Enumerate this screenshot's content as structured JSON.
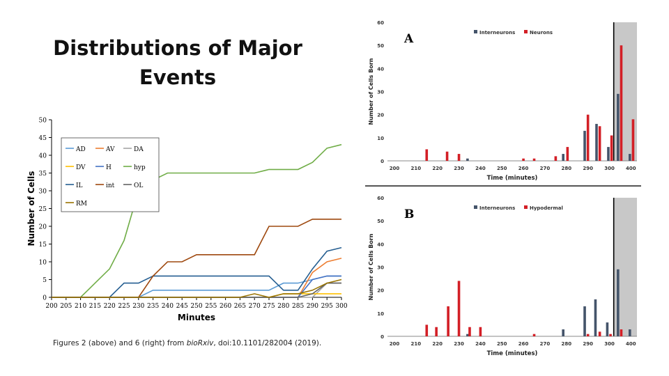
{
  "slide": {
    "title_line1": "Distributions of Major",
    "title_line2": "Events",
    "caption_prefix": "Figures 2 (above) and 6 (right) from ",
    "caption_journal": "bioRxiv",
    "caption_suffix": ", doi:10.1101/282004 (2019)."
  },
  "colors": {
    "AD": "#5b9bd5",
    "AV": "#ed7d31",
    "DA": "#a5a5a5",
    "DV": "#ffc000",
    "H": "#4472c4",
    "hyp": "#70ad47",
    "IL": "#255e91",
    "int": "#9e480e",
    "OL": "#636363",
    "RM": "#997300",
    "interneurons": "#44546a",
    "neurons": "#d31f26",
    "hypodermal": "#d31f26"
  },
  "chart_data": [
    {
      "id": "line",
      "type": "line",
      "xlabel": "Minutes",
      "ylabel": "Number of Cells",
      "ylim": [
        0,
        50
      ],
      "yticks": [
        "0",
        "5",
        "10",
        "15",
        "20",
        "25",
        "30",
        "35",
        "40",
        "45",
        "50"
      ],
      "categories": [
        "200",
        "205",
        "210",
        "215",
        "220",
        "225",
        "230",
        "235",
        "240",
        "245",
        "250",
        "255",
        "260",
        "265",
        "270",
        "275",
        "280",
        "285",
        "290",
        "295",
        "300"
      ],
      "legend": "top-left",
      "series": [
        {
          "name": "AD",
          "values": [
            0,
            0,
            0,
            0,
            0,
            0,
            0,
            2,
            2,
            2,
            2,
            2,
            2,
            2,
            2,
            2,
            4,
            4,
            5,
            6,
            6
          ]
        },
        {
          "name": "AV",
          "values": [
            0,
            0,
            0,
            0,
            0,
            0,
            0,
            0,
            0,
            0,
            0,
            0,
            0,
            0,
            0,
            0,
            0,
            0,
            7,
            10,
            11
          ]
        },
        {
          "name": "DA",
          "values": [
            0,
            0,
            0,
            0,
            0,
            0,
            0,
            0,
            0,
            0,
            0,
            0,
            0,
            0,
            0,
            0,
            0,
            0,
            0,
            4,
            4
          ]
        },
        {
          "name": "DV",
          "values": [
            0,
            0,
            0,
            0,
            0,
            0,
            0,
            0,
            0,
            0,
            0,
            0,
            0,
            0,
            0,
            0,
            1,
            1,
            1,
            1,
            1
          ]
        },
        {
          "name": "H",
          "values": [
            0,
            0,
            0,
            0,
            0,
            0,
            0,
            0,
            0,
            0,
            0,
            0,
            0,
            0,
            0,
            0,
            0,
            0,
            5,
            6,
            6
          ]
        },
        {
          "name": "hyp",
          "values": [
            0,
            0,
            0,
            4,
            8,
            16,
            30,
            33,
            35,
            35,
            35,
            35,
            35,
            35,
            35,
            36,
            36,
            36,
            38,
            42,
            43
          ]
        },
        {
          "name": "IL",
          "values": [
            0,
            0,
            0,
            0,
            0,
            4,
            4,
            6,
            6,
            6,
            6,
            6,
            6,
            6,
            6,
            6,
            2,
            2,
            8,
            13,
            14
          ]
        },
        {
          "name": "int",
          "values": [
            0,
            0,
            0,
            0,
            0,
            0,
            0,
            6,
            10,
            10,
            12,
            12,
            12,
            12,
            12,
            20,
            20,
            20,
            22,
            22,
            22
          ]
        },
        {
          "name": "OL",
          "values": [
            0,
            0,
            0,
            0,
            0,
            0,
            0,
            0,
            0,
            0,
            0,
            0,
            0,
            0,
            0,
            0,
            0,
            0,
            1,
            4,
            4
          ]
        },
        {
          "name": "RM",
          "values": [
            0,
            0,
            0,
            0,
            0,
            0,
            0,
            0,
            0,
            0,
            0,
            0,
            0,
            0,
            1,
            0,
            1,
            1,
            2,
            4,
            5
          ]
        }
      ]
    },
    {
      "id": "A",
      "type": "bar",
      "panel_label": "A",
      "xlabel": "Time (minutes)",
      "ylabel": "Number of Cells Born",
      "ylim": [
        0,
        60
      ],
      "yticks": [
        "0",
        "10",
        "20",
        "30",
        "40",
        "50",
        "60"
      ],
      "xticks": [
        "200",
        "210",
        "220",
        "230",
        "240",
        "250",
        "260",
        "270",
        "280",
        "290",
        "300",
        "400"
      ],
      "legend": "top-center",
      "shaded_region": [
        302,
        310
      ],
      "divider_x": 302,
      "series": [
        {
          "name": "Interneurons",
          "points": [
            [
              234,
              1
            ],
            [
              278.5,
              3
            ],
            [
              288.5,
              13
            ],
            [
              294,
              16
            ],
            [
              299.5,
              6
            ],
            [
              304,
              29
            ],
            [
              309.5,
              3
            ]
          ]
        },
        {
          "name": "Neurons",
          "points": [
            [
              215,
              5
            ],
            [
              224.5,
              4
            ],
            [
              230,
              3
            ],
            [
              260,
              1
            ],
            [
              265,
              1
            ],
            [
              275,
              2
            ],
            [
              280.5,
              6
            ],
            [
              290,
              20
            ],
            [
              295.5,
              15
            ],
            [
              301,
              11
            ],
            [
              305.5,
              50
            ],
            [
              311,
              18
            ]
          ]
        }
      ]
    },
    {
      "id": "B",
      "type": "bar",
      "panel_label": "B",
      "xlabel": "Time (minutes)",
      "ylabel": "Number of Cells Born",
      "ylim": [
        0,
        60
      ],
      "yticks": [
        "0",
        "10",
        "20",
        "30",
        "40",
        "50",
        "60"
      ],
      "xticks": [
        "200",
        "210",
        "220",
        "230",
        "240",
        "250",
        "260",
        "270",
        "280",
        "290",
        "300",
        "400"
      ],
      "legend": "top-center",
      "shaded_region": [
        302,
        310
      ],
      "divider_x": 302,
      "series": [
        {
          "name": "Interneurons",
          "points": [
            [
              234,
              1
            ],
            [
              278.5,
              3
            ],
            [
              288.5,
              13
            ],
            [
              293.5,
              16
            ],
            [
              299,
              6
            ],
            [
              304,
              29
            ],
            [
              309.5,
              3
            ]
          ]
        },
        {
          "name": "Hypodermal",
          "points": [
            [
              215,
              5
            ],
            [
              219.5,
              4
            ],
            [
              225,
              13
            ],
            [
              230,
              24
            ],
            [
              235,
              4
            ],
            [
              240,
              4
            ],
            [
              265,
              1
            ],
            [
              290,
              1
            ],
            [
              295.5,
              2
            ],
            [
              300.5,
              1
            ],
            [
              305.5,
              3
            ]
          ]
        }
      ]
    }
  ]
}
